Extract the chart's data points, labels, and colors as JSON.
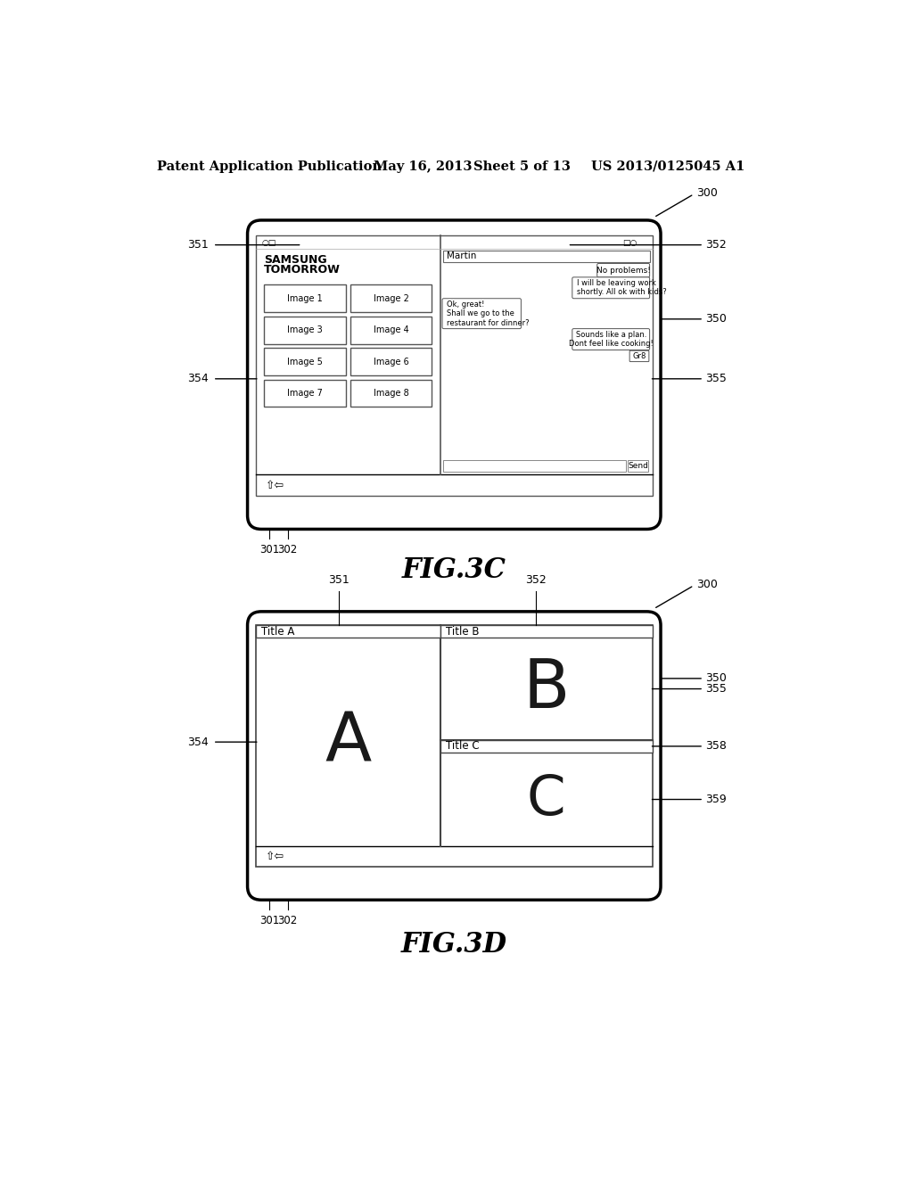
{
  "bg_color": "#ffffff",
  "header_text": "Patent Application Publication",
  "header_date": "May 16, 2013",
  "header_sheet": "Sheet 5 of 13",
  "header_patent": "US 2013/0125045 A1",
  "fig3c_label": "FIG.3C",
  "fig3d_label": "FIG.3D",
  "line_color": "#000000",
  "gray_color": "#888888",
  "fig3c": {
    "label_300": "300",
    "label_350": "350",
    "label_351": "351",
    "label_352": "352",
    "label_354": "354",
    "label_355": "355",
    "label_301": "301",
    "label_302": "302",
    "left_app_title": "SAMSUNG\nTOMORROW",
    "images": [
      "Image 1",
      "Image 2",
      "Image 3",
      "Image 4",
      "Image 5",
      "Image 6",
      "Image 7",
      "Image 8"
    ],
    "chat_name": "Martin",
    "msg1": "No problems!",
    "msg2": "I will be leaving work\nshortly. All ok with kids?",
    "msg3": "Ok, great!\nShall we go to the\nrestaurant for dinner?",
    "msg4": "Sounds like a plan.\nDont feel like cooking!",
    "msg5": "Gr8",
    "send_label": "Send",
    "home_icon": "⇧⇦"
  },
  "fig3d": {
    "label_300": "300",
    "label_350": "350",
    "label_351": "351",
    "label_352": "352",
    "label_354": "354",
    "label_355": "355",
    "label_358": "358",
    "label_359": "359",
    "label_301": "301",
    "label_302": "302",
    "title_a": "Title A",
    "title_b": "Title B",
    "title_c": "Title C",
    "content_a": "A",
    "content_b": "B",
    "content_c": "C",
    "home_icon": "⇧⇦"
  }
}
